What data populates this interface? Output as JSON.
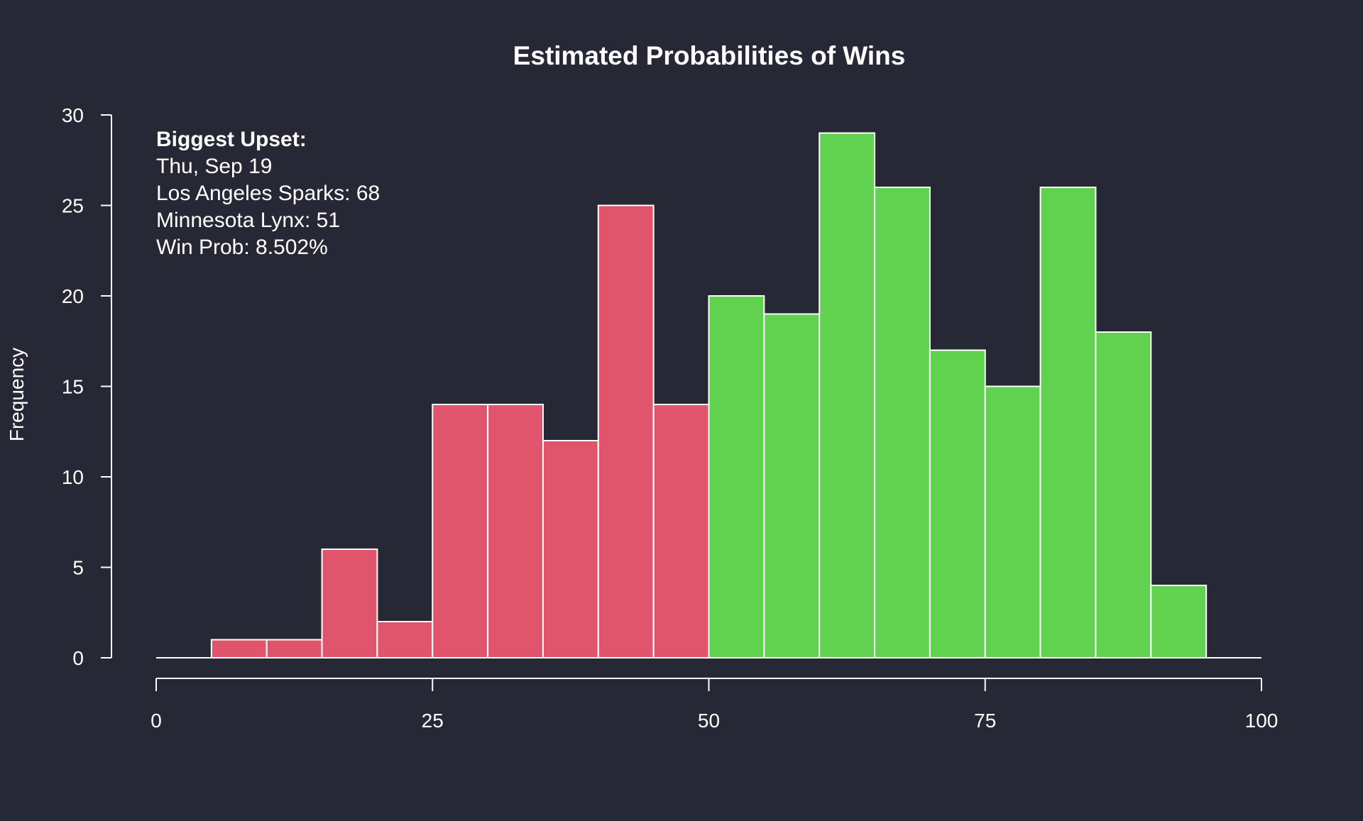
{
  "chart_data": {
    "type": "bar",
    "title": "Estimated Probabilities of Wins",
    "xlabel": "",
    "ylabel": "Frequency",
    "xlim": [
      0,
      100
    ],
    "ylim": [
      0,
      30
    ],
    "x_ticks": [
      0,
      25,
      50,
      75,
      100
    ],
    "y_ticks": [
      0,
      5,
      10,
      15,
      20,
      25,
      30
    ],
    "bin_width": 5,
    "bins": [
      {
        "x0": 0,
        "x1": 5,
        "count": 0
      },
      {
        "x0": 5,
        "x1": 10,
        "count": 1
      },
      {
        "x0": 10,
        "x1": 15,
        "count": 1
      },
      {
        "x0": 15,
        "x1": 20,
        "count": 6
      },
      {
        "x0": 20,
        "x1": 25,
        "count": 2
      },
      {
        "x0": 25,
        "x1": 30,
        "count": 14
      },
      {
        "x0": 30,
        "x1": 35,
        "count": 14
      },
      {
        "x0": 35,
        "x1": 40,
        "count": 12
      },
      {
        "x0": 40,
        "x1": 45,
        "count": 25
      },
      {
        "x0": 45,
        "x1": 50,
        "count": 14
      },
      {
        "x0": 50,
        "x1": 55,
        "count": 20
      },
      {
        "x0": 55,
        "x1": 60,
        "count": 19
      },
      {
        "x0": 60,
        "x1": 65,
        "count": 29
      },
      {
        "x0": 65,
        "x1": 70,
        "count": 26
      },
      {
        "x0": 70,
        "x1": 75,
        "count": 17
      },
      {
        "x0": 75,
        "x1": 80,
        "count": 15
      },
      {
        "x0": 80,
        "x1": 85,
        "count": 26
      },
      {
        "x0": 85,
        "x1": 90,
        "count": 18
      },
      {
        "x0": 90,
        "x1": 95,
        "count": 4
      },
      {
        "x0": 95,
        "x1": 100,
        "count": 0
      }
    ],
    "split_at": 50,
    "colors": {
      "background": "#262935",
      "below_split": "#e0556b",
      "above_split": "#60d250",
      "foreground": "#ffffff"
    },
    "grid": false,
    "annotation": {
      "heading": "Biggest Upset:",
      "lines": [
        "Thu, Sep 19",
        "Los Angeles Sparks: 68",
        "Minnesota Lynx: 51",
        "Win Prob: 8.502%"
      ]
    }
  }
}
